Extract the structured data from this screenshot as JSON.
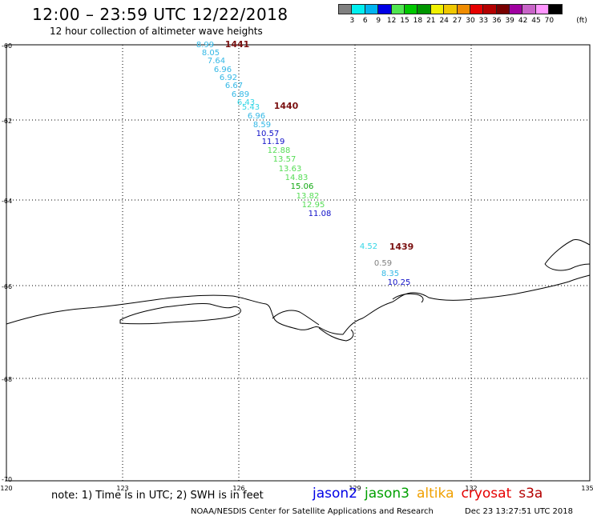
{
  "header": {
    "title": "12:00 – 23:59 UTC 12/22/2018",
    "subtitle": "12 hour collection of altimeter wave heights"
  },
  "legend": {
    "unit": "(ft)",
    "colors": [
      "#808080",
      "#00f0f0",
      "#00b4f0",
      "#0000e6",
      "#50e650",
      "#00c800",
      "#009600",
      "#f0f000",
      "#f0c800",
      "#f08c00",
      "#e60000",
      "#b40000",
      "#780000",
      "#a000a0",
      "#c864c8",
      "#ff96ff",
      "#000000"
    ],
    "labels": [
      "3",
      "6",
      "9",
      "12",
      "15",
      "18",
      "21",
      "24",
      "27",
      "30",
      "33",
      "36",
      "39",
      "42",
      "45",
      "70"
    ]
  },
  "axes": {
    "lat_labels": [
      "-60",
      "-62",
      "-64",
      "-66",
      "-68",
      "-70"
    ],
    "lon_labels": [
      "120",
      "123",
      "126",
      "129",
      "132",
      "135"
    ]
  },
  "tracks": [
    {
      "label": "1441",
      "color": "#7a1010"
    },
    {
      "label": "1440",
      "color": "#7a1010"
    },
    {
      "label": "1439",
      "color": "#7a1010"
    }
  ],
  "observations": [
    {
      "value": "8.99",
      "color": "#33b8e6"
    },
    {
      "value": "8.05",
      "color": "#33b8e6"
    },
    {
      "value": "7.64",
      "color": "#33b8e6"
    },
    {
      "value": "6.96",
      "color": "#33b8e6"
    },
    {
      "value": "6.92",
      "color": "#33b8e6"
    },
    {
      "value": "6.67",
      "color": "#33b8e6"
    },
    {
      "value": "6.89",
      "color": "#33b8e6"
    },
    {
      "value": "6.43",
      "color": "#33d6e6"
    },
    {
      "value": "5.43",
      "color": "#33d6e6"
    },
    {
      "value": "6.96",
      "color": "#33b8e6"
    },
    {
      "value": "8.59",
      "color": "#33b8e6"
    },
    {
      "value": "10.57",
      "color": "#1010c8"
    },
    {
      "value": "11.19",
      "color": "#1010c8"
    },
    {
      "value": "12.88",
      "color": "#55dd55"
    },
    {
      "value": "13.57",
      "color": "#55dd55"
    },
    {
      "value": "13.63",
      "color": "#55dd55"
    },
    {
      "value": "14.83",
      "color": "#55dd55"
    },
    {
      "value": "15.06",
      "color": "#10a810"
    },
    {
      "value": "13.82",
      "color": "#55dd55"
    },
    {
      "value": "12.95",
      "color": "#55dd55"
    },
    {
      "value": "11.08",
      "color": "#1010c8"
    },
    {
      "value": "4.52",
      "color": "#33d6e6"
    },
    {
      "value": "0.59",
      "color": "#808080"
    },
    {
      "value": "8.35",
      "color": "#33b8e6"
    },
    {
      "value": "10.25",
      "color": "#1010c8"
    }
  ],
  "footer": {
    "note": "note: 1) Time is in UTC; 2) SWH is in feet",
    "missions": [
      {
        "name": "jason2",
        "color": "#0000e6"
      },
      {
        "name": "jason3",
        "color": "#00a000"
      },
      {
        "name": "altika",
        "color": "#f0a000"
      },
      {
        "name": "cryosat",
        "color": "#e60000"
      },
      {
        "name": "s3a",
        "color": "#b40000"
      }
    ],
    "credit": "NOAA/NESDIS Center for Satellite Applications and Research",
    "timestamp": "Dec 23 13:27:51 UTC 2018"
  }
}
